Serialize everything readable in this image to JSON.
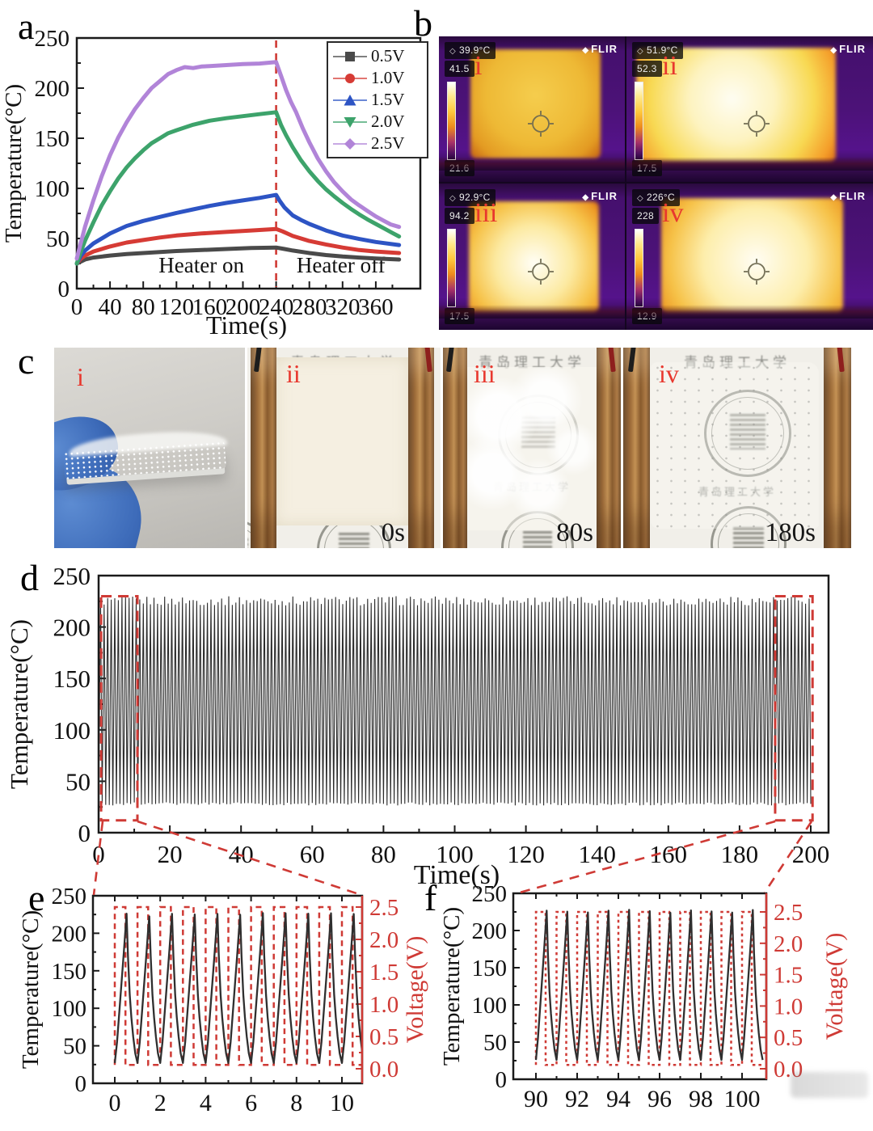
{
  "accent": {
    "red": "#cf3a35",
    "curve_black": "#2f2f2f",
    "frame": "#1a1a1a"
  },
  "panels": {
    "a": "a",
    "b": "b",
    "c": "c",
    "d": "d",
    "e": "e",
    "f": "f"
  },
  "panel_b": {
    "flir_label": "FLIR",
    "frames": [
      {
        "numeral": "i",
        "spot_temp": "39.9°C",
        "scale_max": "41.5",
        "scale_min": "21.6"
      },
      {
        "numeral": "ii",
        "spot_temp": "51.9°C",
        "scale_max": "52.3",
        "scale_min": "17.5"
      },
      {
        "numeral": "iii",
        "spot_temp": "92.9°C",
        "scale_max": "94.2",
        "scale_min": "17.5"
      },
      {
        "numeral": "iv",
        "spot_temp": "226°C",
        "scale_max": "228",
        "scale_min": "12.9"
      }
    ]
  },
  "panel_c": {
    "stamp_text": "青岛理工大学",
    "photos": [
      {
        "numeral": "i",
        "time_label": ""
      },
      {
        "numeral": "ii",
        "time_label": "0s"
      },
      {
        "numeral": "iii",
        "time_label": "80s"
      },
      {
        "numeral": "iv",
        "time_label": "180s"
      }
    ]
  },
  "chart_data": [
    {
      "id": "a",
      "type": "line",
      "xlabel": "Time(s)",
      "ylabel": "Temperature(°C)",
      "xlim": [
        0,
        410
      ],
      "ylim": [
        0,
        250
      ],
      "xticks": [
        0,
        40,
        80,
        120,
        160,
        200,
        240,
        280,
        320,
        360
      ],
      "yticks": [
        0,
        50,
        100,
        150,
        200,
        250
      ],
      "grid": false,
      "legend_position": "top-right",
      "event_line": {
        "x": 240,
        "style": "dashed"
      },
      "annotations": [
        {
          "text": "Heater on",
          "x": 150,
          "y": 16
        },
        {
          "text": "Heater off",
          "x": 318,
          "y": 16
        }
      ],
      "series": [
        {
          "name": "0.5V",
          "color": "#4a4a4a",
          "marker": "square",
          "x": [
            0,
            5,
            10,
            20,
            40,
            60,
            80,
            100,
            120,
            150,
            180,
            210,
            240,
            250,
            260,
            280,
            300,
            320,
            340,
            360,
            388
          ],
          "y": [
            25,
            27,
            29,
            31,
            33,
            34.5,
            35.5,
            36.5,
            37.5,
            38.5,
            39.5,
            40.5,
            41,
            39.5,
            38,
            35.5,
            33.5,
            32,
            31,
            30,
            29
          ]
        },
        {
          "name": "1.0V",
          "color": "#d63b35",
          "marker": "circle",
          "x": [
            0,
            5,
            10,
            20,
            40,
            60,
            80,
            100,
            120,
            150,
            180,
            210,
            240,
            248,
            260,
            280,
            300,
            320,
            340,
            360,
            388
          ],
          "y": [
            25,
            30,
            33,
            37,
            42,
            46,
            48.5,
            51,
            53,
            55,
            56.5,
            58,
            59.5,
            57,
            52.5,
            47.5,
            44,
            41,
            38.5,
            37,
            35.5
          ]
        },
        {
          "name": "1.5V",
          "color": "#2d54c4",
          "marker": "triangle-up",
          "x": [
            0,
            5,
            10,
            20,
            40,
            60,
            80,
            100,
            120,
            140,
            160,
            180,
            200,
            220,
            240,
            244,
            250,
            260,
            270,
            280,
            300,
            320,
            340,
            360,
            388
          ],
          "y": [
            25,
            33,
            38,
            45,
            55,
            62.5,
            67.5,
            71.5,
            75.5,
            79,
            82.5,
            85.5,
            88,
            90.5,
            93.5,
            88,
            81,
            73,
            68.5,
            64.5,
            58,
            53,
            49.5,
            46.5,
            43.5
          ]
        },
        {
          "name": "2.0V",
          "color": "#3da36b",
          "marker": "triangle-down",
          "x": [
            0,
            5,
            10,
            20,
            30,
            40,
            50,
            60,
            70,
            80,
            90,
            100,
            110,
            120,
            140,
            160,
            180,
            200,
            220,
            240,
            246,
            252,
            260,
            270,
            280,
            290,
            300,
            310,
            320,
            330,
            340,
            350,
            360,
            370,
            380,
            388
          ],
          "y": [
            25,
            37,
            48,
            66,
            83,
            97,
            110,
            121,
            130,
            138,
            145,
            150,
            155,
            158,
            163.5,
            167.5,
            170,
            172,
            174,
            176,
            163,
            153,
            141,
            128,
            117,
            107.5,
            99,
            92,
            85.5,
            79.5,
            74,
            69,
            64.5,
            60,
            55.5,
            52
          ]
        },
        {
          "name": "2.5V",
          "color": "#b184d8",
          "marker": "diamond",
          "x": [
            0,
            5,
            10,
            20,
            30,
            40,
            50,
            60,
            70,
            80,
            90,
            100,
            110,
            120,
            130,
            140,
            150,
            160,
            180,
            200,
            220,
            240,
            246,
            252,
            258,
            264,
            272,
            280,
            290,
            300,
            310,
            320,
            330,
            340,
            350,
            360,
            370,
            378,
            388
          ],
          "y": [
            30,
            46,
            62,
            88,
            112,
            133,
            151,
            166,
            179,
            190,
            200,
            207,
            214,
            218,
            221,
            220,
            221.5,
            222,
            223,
            224,
            224.5,
            226,
            212,
            198,
            186,
            176,
            160,
            146,
            130,
            117,
            106,
            97,
            89,
            83,
            77.5,
            72,
            67.5,
            64,
            61.5
          ]
        }
      ]
    },
    {
      "id": "d",
      "type": "line",
      "xlabel": "Time(s)",
      "ylabel": "Temperature(°C)",
      "xlim": [
        0,
        204
      ],
      "ylim": [
        0,
        250
      ],
      "xticks": [
        0,
        20,
        40,
        60,
        80,
        100,
        120,
        140,
        160,
        180,
        200
      ],
      "yticks": [
        0,
        50,
        100,
        150,
        200,
        250
      ],
      "grid": false,
      "color": "#2b2b2b",
      "series_description": "200 repeated heating-cooling cycles between ~28°C and ~228°C",
      "cycle_wave": {
        "cycles": 200,
        "valley": 28,
        "peak_min": 221,
        "peak_max": 230,
        "rise_fraction": 0.55
      },
      "zoom_boxes": [
        {
          "x": [
            0.7,
            10.9
          ],
          "y": [
            12,
            230
          ]
        },
        {
          "x": [
            190,
            200.5
          ],
          "y": [
            12,
            230
          ]
        }
      ]
    },
    {
      "id": "e",
      "type": "line-dual-axis",
      "ylabel_left": "Temperature(°C)",
      "ylabel_right": "Voltage(V)",
      "xlim": [
        -0.9,
        10.9
      ],
      "xticks": [
        0,
        2,
        4,
        6,
        8,
        10
      ],
      "ylim_left": [
        0,
        250
      ],
      "yticks_left": [
        0,
        50,
        100,
        150,
        200,
        250
      ],
      "yticks_right": [
        "0.0",
        "0.5",
        "1.0",
        "1.5",
        "2.0",
        "2.5"
      ],
      "temperature_wave": {
        "x_start": 0,
        "cycles": 11,
        "period": 1,
        "valley": 27,
        "peak": 226,
        "peak_time_fraction": 0.52
      },
      "voltage_wave": {
        "high": 2.5,
        "low": 0.06,
        "duty_fraction": 0.47,
        "style": "dashed"
      },
      "colors": {
        "temperature": "#2f2f2f",
        "voltage": "#cf3a35"
      }
    },
    {
      "id": "f",
      "type": "line-dual-axis",
      "ylabel_left": "Temperature(°C)",
      "ylabel_right": "Voltage(V)",
      "xlim": [
        88.9,
        101.2
      ],
      "xticks": [
        90,
        92,
        94,
        96,
        98,
        100
      ],
      "ylim_left": [
        0,
        250
      ],
      "yticks_left": [
        0,
        50,
        100,
        150,
        200,
        250
      ],
      "yticks_right": [
        "0.0",
        "0.5",
        "1.0",
        "1.5",
        "2.0",
        "2.5"
      ],
      "temperature_wave": {
        "x_start": 90,
        "cycles": 11,
        "period": 1,
        "valley": 26,
        "peak": 227,
        "peak_time_fraction": 0.52
      },
      "voltage_wave": {
        "high": 2.5,
        "low": 0.06,
        "duty_fraction": 0.47,
        "style": "dotted"
      },
      "colors": {
        "temperature": "#2f2f2f",
        "voltage": "#cf3a35"
      }
    }
  ]
}
